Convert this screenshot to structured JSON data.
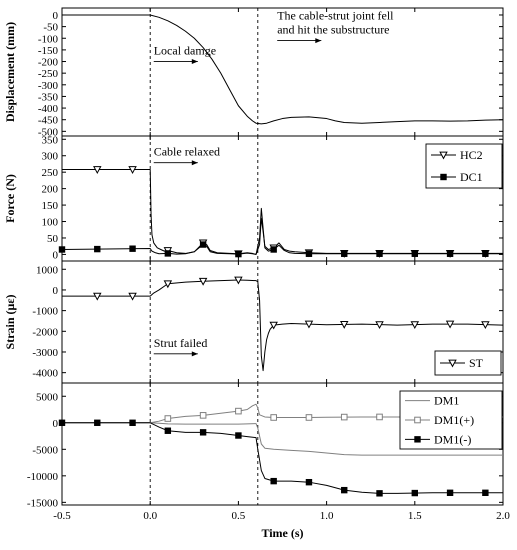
{
  "chart_data": {
    "type": "line",
    "xlabel": "Time (s)",
    "xlim": [
      -0.5,
      2.0
    ],
    "xticks": [
      -0.5,
      0.0,
      0.5,
      1.0,
      1.5,
      2.0
    ],
    "xtick_labels": [
      "-0.5",
      "0.0",
      "0.5",
      "1.0",
      "1.5",
      "2.0"
    ],
    "event_lines_x": [
      0.0,
      0.61
    ],
    "panels": [
      {
        "id": "displacement",
        "ylabel": "Displacement (mm)",
        "ylim": [
          -520,
          30
        ],
        "yticks": [
          0,
          -50,
          -100,
          -150,
          -200,
          -250,
          -300,
          -350,
          -400,
          -450,
          -500
        ],
        "ytick_labels": [
          "0",
          "-50",
          "-100",
          "-150",
          "-200",
          "-250",
          "-300",
          "-350",
          "-400",
          "-450",
          "-500"
        ],
        "annotations": [
          {
            "text": "Local damge",
            "x": 0.02,
            "y": -170,
            "arrow_to_x": 0.27
          },
          {
            "text": "The cable-strut joint fell",
            "x": 0.72,
            "y": -20
          },
          {
            "text": "and hit the substructure",
            "x": 0.72,
            "y": -80,
            "arrow_to_x": 0.97
          }
        ],
        "series": [
          {
            "name": "",
            "color": "#000000",
            "marker": "none",
            "x": [
              -0.5,
              0.0,
              0.05,
              0.1,
              0.15,
              0.2,
              0.25,
              0.3,
              0.35,
              0.4,
              0.45,
              0.5,
              0.55,
              0.58,
              0.6,
              0.63,
              0.66,
              0.7,
              0.75,
              0.8,
              0.9,
              1.0,
              1.05,
              1.1,
              1.2,
              1.3,
              1.4,
              1.5,
              1.6,
              1.7,
              1.8,
              1.9,
              2.0
            ],
            "y": [
              0,
              0,
              -10,
              -25,
              -45,
              -70,
              -100,
              -140,
              -190,
              -250,
              -320,
              -390,
              -435,
              -455,
              -465,
              -468,
              -465,
              -455,
              -445,
              -440,
              -438,
              -445,
              -455,
              -462,
              -465,
              -462,
              -458,
              -455,
              -455,
              -456,
              -455,
              -452,
              -450
            ]
          }
        ]
      },
      {
        "id": "force",
        "ylabel": "Force (N)",
        "ylim": [
          -20,
          360
        ],
        "yticks": [
          0,
          50,
          100,
          150,
          200,
          250,
          300,
          350
        ],
        "ytick_labels": [
          "0",
          "50",
          "100",
          "150",
          "200",
          "250",
          "300",
          "350"
        ],
        "annotations": [
          {
            "text": "Cable relaxed",
            "x": 0.02,
            "y": 300,
            "arrow_to_x": 0.27
          }
        ],
        "legend": {
          "placement": "top-right"
        },
        "series": [
          {
            "name": "HC2",
            "color": "#000000",
            "marker": "triangle-down-open",
            "marker_x": [
              -0.3,
              -0.1,
              0.1,
              0.3,
              0.5,
              0.7,
              0.9,
              1.1,
              1.3,
              1.5,
              1.7,
              1.9
            ],
            "x": [
              -0.5,
              -0.01,
              0.0,
              0.005,
              0.01,
              0.02,
              0.04,
              0.06,
              0.08,
              0.1,
              0.15,
              0.2,
              0.25,
              0.3,
              0.32,
              0.34,
              0.38,
              0.45,
              0.5,
              0.55,
              0.58,
              0.6,
              0.62,
              0.63,
              0.64,
              0.65,
              0.67,
              0.7,
              0.73,
              0.76,
              0.79,
              0.82,
              0.9,
              1.0,
              1.2,
              1.4,
              1.6,
              1.8,
              2.0
            ],
            "y": [
              258,
              258,
              258,
              120,
              60,
              35,
              20,
              15,
              10,
              12,
              5,
              3,
              8,
              35,
              30,
              12,
              5,
              3,
              2,
              5,
              3,
              0,
              30,
              110,
              70,
              25,
              15,
              20,
              35,
              15,
              10,
              8,
              5,
              3,
              3,
              3,
              3,
              3,
              3
            ]
          },
          {
            "name": "DC1",
            "color": "#000000",
            "marker": "square-filled",
            "marker_x": [
              -0.5,
              -0.3,
              -0.1,
              0.1,
              0.3,
              0.5,
              0.7,
              0.9,
              1.1,
              1.3,
              1.5,
              1.7,
              1.9
            ],
            "x": [
              -0.5,
              0.0,
              0.01,
              0.03,
              0.05,
              0.1,
              0.15,
              0.2,
              0.25,
              0.3,
              0.32,
              0.34,
              0.38,
              0.45,
              0.5,
              0.55,
              0.58,
              0.6,
              0.62,
              0.63,
              0.64,
              0.65,
              0.67,
              0.7,
              0.73,
              0.76,
              0.79,
              0.82,
              0.9,
              1.0,
              1.2,
              1.4,
              1.6,
              1.8,
              2.0
            ],
            "y": [
              15,
              18,
              10,
              5,
              2,
              3,
              1,
              2,
              8,
              30,
              25,
              8,
              3,
              2,
              1,
              4,
              2,
              0,
              50,
              140,
              80,
              20,
              10,
              15,
              28,
              12,
              5,
              3,
              2,
              2,
              2,
              2,
              2,
              2,
              2
            ]
          }
        ]
      },
      {
        "id": "strain_st",
        "ylabel": "Strain (με)",
        "ylim": [
          -4500,
          1400
        ],
        "yticks": [
          1000,
          0,
          -1000,
          -2000,
          -3000,
          -4000
        ],
        "ytick_labels": [
          "1000",
          "0",
          "-1000",
          "-2000",
          "-3000",
          "-4000"
        ],
        "annotations": [
          {
            "text": "Strut failed",
            "x": 0.02,
            "y": -2750,
            "arrow_to_x": 0.27
          }
        ],
        "legend": {
          "placement": "bottom-right"
        },
        "series": [
          {
            "name": "ST",
            "color": "#000000",
            "marker": "triangle-down-open",
            "marker_x": [
              -0.3,
              -0.1,
              0.1,
              0.3,
              0.5,
              0.7,
              0.9,
              1.1,
              1.3,
              1.5,
              1.7,
              1.9
            ],
            "x": [
              -0.5,
              0.0,
              0.02,
              0.05,
              0.1,
              0.2,
              0.3,
              0.4,
              0.5,
              0.55,
              0.6,
              0.61,
              0.62,
              0.63,
              0.64,
              0.65,
              0.66,
              0.67,
              0.68,
              0.7,
              0.75,
              0.8,
              0.9,
              1.0,
              1.2,
              1.4,
              1.6,
              1.8,
              2.0
            ],
            "y": [
              -300,
              -300,
              -150,
              0,
              300,
              380,
              420,
              450,
              480,
              470,
              450,
              400,
              -500,
              -3200,
              -3900,
              -3000,
              -2400,
              -2100,
              -1900,
              -1700,
              -1650,
              -1620,
              -1650,
              -1680,
              -1650,
              -1700,
              -1650,
              -1650,
              -1700
            ]
          }
        ]
      },
      {
        "id": "strain_dm",
        "ylabel": "",
        "ylim": [
          -15500,
          7500
        ],
        "yticks": [
          5000,
          0,
          -5000,
          -10000,
          -15000
        ],
        "ytick_labels": [
          "5000",
          "0",
          "-5000",
          "-10000",
          "-15000"
        ],
        "legend": {
          "placement": "top-right"
        },
        "series": [
          {
            "name": "DM1",
            "color": "#808080",
            "marker": "none",
            "x": [
              -0.5,
              0.0,
              0.05,
              0.1,
              0.2,
              0.3,
              0.4,
              0.5,
              0.55,
              0.6,
              0.61,
              0.63,
              0.65,
              0.7,
              0.8,
              0.9,
              1.0,
              1.1,
              1.2,
              1.4,
              1.6,
              1.8,
              2.0
            ],
            "y": [
              0,
              0,
              -100,
              -200,
              -250,
              -250,
              -250,
              -250,
              -200,
              -150,
              -1000,
              -4000,
              -4800,
              -5000,
              -5200,
              -5400,
              -5700,
              -6000,
              -6100,
              -6100,
              -6100,
              -6100,
              -6100
            ]
          },
          {
            "name": "DM1(+)",
            "color": "#808080",
            "marker": "square-open",
            "marker_x": [
              0.1,
              0.3,
              0.5,
              0.7,
              0.9,
              1.1,
              1.3,
              1.5,
              1.7,
              1.9
            ],
            "x": [
              -0.5,
              0.0,
              0.05,
              0.1,
              0.2,
              0.3,
              0.4,
              0.5,
              0.55,
              0.58,
              0.6,
              0.61,
              0.62,
              0.65,
              0.7,
              0.8,
              0.9,
              1.0,
              1.2,
              1.4,
              1.6,
              1.8,
              2.0
            ],
            "y": [
              0,
              0,
              300,
              800,
              1200,
              1400,
              1800,
              2200,
              2500,
              3200,
              3500,
              2800,
              1500,
              1100,
              1000,
              1000,
              1000,
              1050,
              1100,
              1100,
              1100,
              1100,
              1100
            ]
          },
          {
            "name": "DM1(-)",
            "color": "#000000",
            "marker": "square-filled",
            "marker_x": [
              -0.5,
              -0.3,
              -0.1,
              0.1,
              0.3,
              0.5,
              0.7,
              0.9,
              1.1,
              1.3,
              1.5,
              1.7,
              1.9
            ],
            "x": [
              -0.5,
              0.0,
              0.05,
              0.1,
              0.2,
              0.3,
              0.4,
              0.5,
              0.55,
              0.6,
              0.61,
              0.63,
              0.65,
              0.7,
              0.8,
              0.9,
              1.0,
              1.1,
              1.2,
              1.3,
              1.4,
              1.6,
              1.8,
              2.0
            ],
            "y": [
              0,
              0,
              -800,
              -1500,
              -1800,
              -1800,
              -2000,
              -2400,
              -2600,
              -2800,
              -5000,
              -9000,
              -10500,
              -11000,
              -11000,
              -11200,
              -11800,
              -12700,
              -13100,
              -13300,
              -13300,
              -13200,
              -13200,
              -13200
            ]
          }
        ]
      }
    ]
  }
}
